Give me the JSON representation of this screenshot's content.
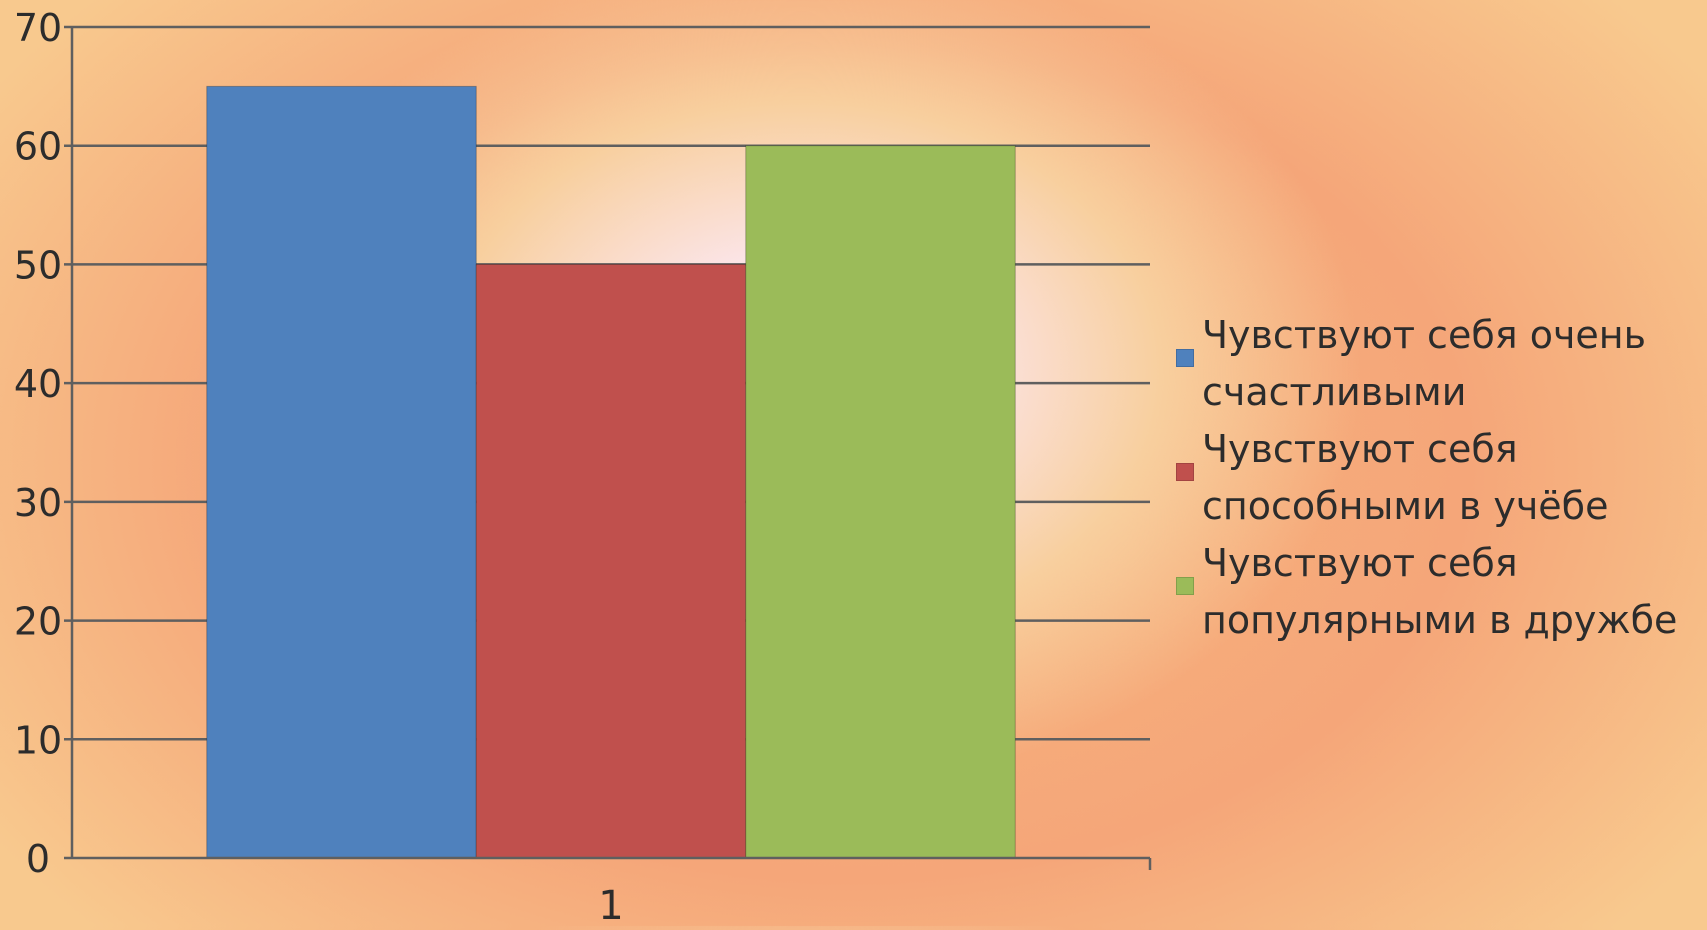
{
  "chart_data": {
    "type": "bar",
    "categories": [
      "1"
    ],
    "series": [
      {
        "name": "Чувствуют себя очень счастливыми",
        "values": [
          65
        ],
        "color": "#4f81bd"
      },
      {
        "name": "Чувствуют себя способными в учёбе",
        "values": [
          50
        ],
        "color": "#c0504d"
      },
      {
        "name": "Чувствуют себя популярными в дружбе",
        "values": [
          60
        ],
        "color": "#9bbb59"
      }
    ],
    "ylim": [
      0,
      70
    ],
    "yticks": [
      0,
      10,
      20,
      30,
      40,
      50,
      60,
      70
    ],
    "grid": true,
    "legend_position": "right",
    "title": "",
    "xlabel": "",
    "ylabel": ""
  }
}
